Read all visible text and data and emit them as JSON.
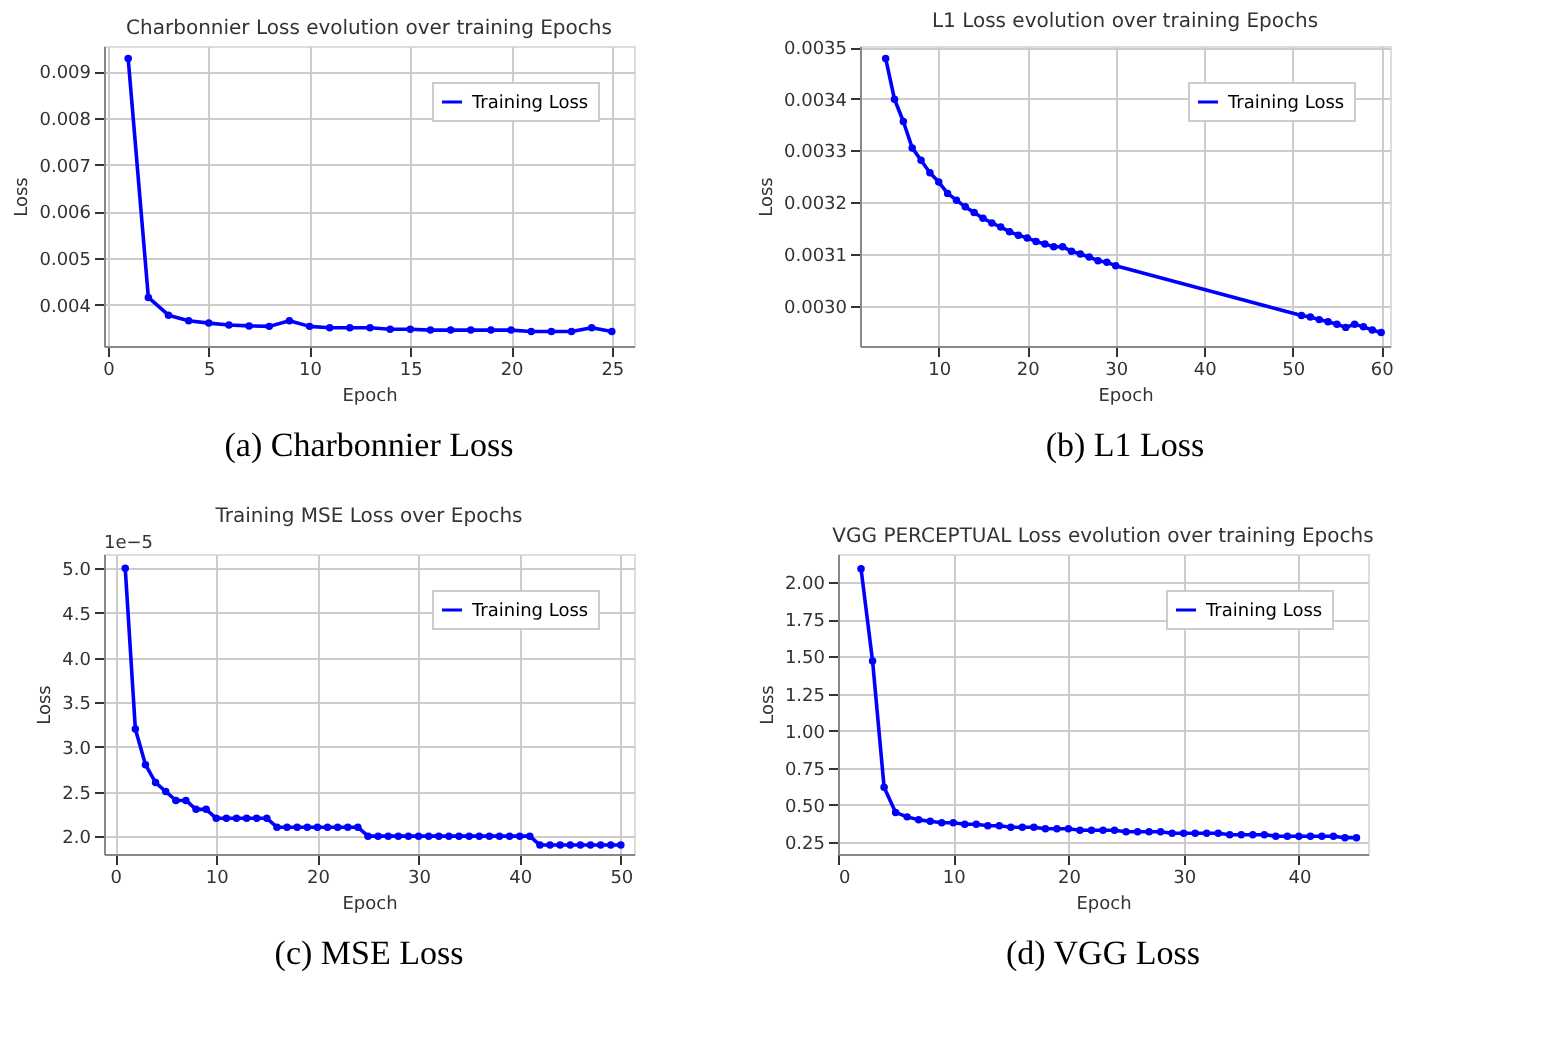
{
  "chart_data": [
    {
      "type": "line",
      "title": "Charbonnier Loss evolution over training Epochs",
      "subtitle": "(a) Charbonnier Loss",
      "xlabel": "Epoch",
      "ylabel": "Loss",
      "series": [
        {
          "name": "Training Loss",
          "color": "#0000ff",
          "x": [
            1,
            2,
            3,
            4,
            5,
            6,
            7,
            8,
            9,
            10,
            11,
            12,
            13,
            14,
            15,
            16,
            17,
            18,
            19,
            20,
            21,
            22,
            23,
            24,
            25
          ],
          "values": [
            0.00927,
            0.00416,
            0.00378,
            0.00366,
            0.00361,
            0.00357,
            0.00355,
            0.00354,
            0.00366,
            0.00354,
            0.00351,
            0.00351,
            0.00351,
            0.00348,
            0.00348,
            0.00346,
            0.00346,
            0.00346,
            0.00346,
            0.00346,
            0.00343,
            0.00343,
            0.00343,
            0.00351,
            0.00343
          ]
        }
      ],
      "xlim": [
        -0.2,
        26.1
      ],
      "xticks": [
        0,
        5,
        10,
        15,
        20,
        25
      ],
      "ylim": [
        0.00312,
        0.00954
      ],
      "yticks": [
        0.004,
        0.005,
        0.006,
        0.007,
        0.008,
        0.009
      ],
      "grid": true,
      "legend": "top right",
      "marker": "circle",
      "line_style": "solid"
    },
    {
      "type": "line",
      "title": "L1 Loss evolution over training Epochs",
      "subtitle": "(b) L1 Loss",
      "xlabel": "Epoch",
      "ylabel": "Loss",
      "series": [
        {
          "name": "Training Loss",
          "color": "#0000ff",
          "x": [
            4,
            5,
            6,
            7,
            8,
            9,
            10,
            11,
            12,
            13,
            14,
            15,
            16,
            17,
            18,
            19,
            20,
            21,
            22,
            23,
            24,
            25,
            26,
            27,
            28,
            29,
            30,
            51,
            52,
            53,
            54,
            55,
            56,
            57,
            58,
            59,
            60
          ],
          "values": [
            0.003478,
            0.003399,
            0.003356,
            0.003305,
            0.003281,
            0.003257,
            0.003239,
            0.003217,
            0.003204,
            0.003191,
            0.00318,
            0.003169,
            0.00316,
            0.003152,
            0.003143,
            0.003136,
            0.003131,
            0.003124,
            0.003119,
            0.003114,
            0.003114,
            0.003105,
            0.0031,
            0.003094,
            0.003087,
            0.003084,
            0.003077,
            0.002981,
            0.002978,
            0.002973,
            0.002969,
            0.002964,
            0.002958,
            0.002964,
            0.002959,
            0.002953,
            0.002948
          ]
        }
      ],
      "xlim": [
        1.1,
        61
      ],
      "xticks": [
        10,
        20,
        30,
        40,
        50,
        60
      ],
      "ylim": [
        0.002922,
        0.003502
      ],
      "yticks": [
        {
          "value": 0.003,
          "label": "0.0030"
        },
        {
          "value": 0.0031,
          "label": "0.0031"
        },
        {
          "value": 0.0032,
          "label": "0.0032"
        },
        {
          "value": 0.0033,
          "label": "0.0033"
        },
        {
          "value": 0.0034,
          "label": "0.0034"
        },
        {
          "value": 0.0035,
          "label": "0.0035"
        }
      ],
      "grid": true,
      "legend": "top right",
      "marker": "circle",
      "line_style": "solid"
    },
    {
      "type": "line",
      "title": "Training MSE Loss over Epochs",
      "subtitle": "(c) MSE Loss",
      "xlabel": "Epoch",
      "ylabel": "Loss",
      "annotations": [
        "1e−5"
      ],
      "series": [
        {
          "name": "Training Loss",
          "color": "#0000ff",
          "x": [
            1,
            2,
            3,
            4,
            5,
            6,
            7,
            8,
            9,
            10,
            11,
            12,
            13,
            14,
            15,
            16,
            17,
            18,
            19,
            20,
            21,
            22,
            23,
            24,
            25,
            26,
            27,
            28,
            29,
            30,
            31,
            32,
            33,
            34,
            35,
            36,
            37,
            38,
            39,
            40,
            41,
            42,
            43,
            44,
            45,
            46,
            47,
            48,
            49,
            50
          ],
          "values": [
            5.0,
            3.2,
            2.8,
            2.6,
            2.5,
            2.4,
            2.4,
            2.3,
            2.3,
            2.2,
            2.2,
            2.2,
            2.2,
            2.2,
            2.2,
            2.1,
            2.1,
            2.1,
            2.1,
            2.1,
            2.1,
            2.1,
            2.1,
            2.1,
            2.0,
            2.0,
            2.0,
            2.0,
            2.0,
            2.0,
            2.0,
            2.0,
            2.0,
            2.0,
            2.0,
            2.0,
            2.0,
            2.0,
            2.0,
            2.0,
            2.0,
            1.9,
            1.9,
            1.9,
            1.9,
            1.9,
            1.9,
            1.9,
            1.9,
            1.9
          ]
        }
      ],
      "xlim": [
        -1.1,
        51.3
      ],
      "xticks": [
        0,
        10,
        20,
        30,
        40,
        50
      ],
      "ylim": [
        1.8,
        5.16
      ],
      "yticks": [
        {
          "value": 2.0,
          "label": "2.0"
        },
        {
          "value": 2.5,
          "label": "2.5"
        },
        {
          "value": 3.0,
          "label": "3.0"
        },
        {
          "value": 3.5,
          "label": "3.5"
        },
        {
          "value": 4.0,
          "label": "4.0"
        },
        {
          "value": 4.5,
          "label": "4.5"
        },
        {
          "value": 5.0,
          "label": "5.0"
        }
      ],
      "grid": true,
      "legend": "top right",
      "marker": "circle",
      "line_style": "solid"
    },
    {
      "type": "line",
      "title": "VGG PERCEPTUAL Loss evolution over training Epochs",
      "subtitle": "(d) VGG Loss",
      "xlabel": "Epoch",
      "ylabel": "Loss",
      "series": [
        {
          "name": "Training Loss",
          "color": "#0000ff",
          "x": [
            2,
            3,
            4,
            5,
            6,
            7,
            8,
            9,
            10,
            11,
            12,
            13,
            14,
            15,
            16,
            17,
            18,
            19,
            20,
            21,
            22,
            23,
            24,
            25,
            26,
            27,
            28,
            29,
            30,
            31,
            32,
            33,
            34,
            35,
            36,
            37,
            38,
            39,
            40,
            41,
            42,
            43,
            44,
            45
          ],
          "values": [
            2.09,
            1.47,
            0.62,
            0.45,
            0.42,
            0.4,
            0.39,
            0.38,
            0.38,
            0.37,
            0.37,
            0.36,
            0.36,
            0.35,
            0.35,
            0.35,
            0.34,
            0.34,
            0.34,
            0.33,
            0.33,
            0.33,
            0.33,
            0.32,
            0.32,
            0.32,
            0.32,
            0.31,
            0.31,
            0.31,
            0.31,
            0.31,
            0.3,
            0.3,
            0.3,
            0.3,
            0.29,
            0.29,
            0.29,
            0.29,
            0.29,
            0.29,
            0.28,
            0.28
          ]
        }
      ],
      "xlim": [
        0,
        46
      ],
      "xticks": [
        0,
        10,
        20,
        30,
        40
      ],
      "ylim": [
        0.17,
        2.19
      ],
      "yticks": [
        {
          "value": 0.25,
          "label": "0.25"
        },
        {
          "value": 0.5,
          "label": "0.50"
        },
        {
          "value": 0.75,
          "label": "0.75"
        },
        {
          "value": 1.0,
          "label": "1.00"
        },
        {
          "value": 1.25,
          "label": "1.25"
        },
        {
          "value": 1.5,
          "label": "1.50"
        },
        {
          "value": 1.75,
          "label": "1.75"
        },
        {
          "value": 2.0,
          "label": "2.00"
        }
      ],
      "grid": true,
      "legend": "top right",
      "marker": "circle",
      "line_style": "solid"
    }
  ]
}
